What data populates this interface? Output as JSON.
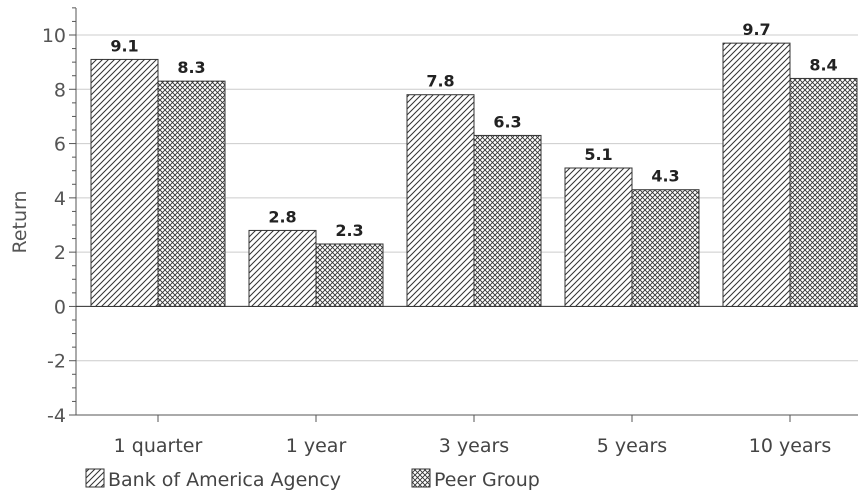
{
  "chart_data": {
    "type": "bar",
    "categories": [
      "1 quarter",
      "1 year",
      "3 years",
      "5 years",
      "10 years"
    ],
    "series": [
      {
        "name": "Bank of America Agency",
        "values": [
          9.1,
          2.8,
          7.8,
          5.1,
          9.7
        ],
        "pattern": "diagonal-hatch"
      },
      {
        "name": "Peer Group",
        "values": [
          8.3,
          2.3,
          6.3,
          4.3,
          8.4
        ],
        "pattern": "cross-hatch"
      }
    ],
    "ylabel": "Return",
    "ylim": [
      -4,
      11
    ],
    "yticks": [
      -4,
      -2,
      0,
      2,
      4,
      6,
      8,
      10
    ],
    "grid": true,
    "legend": "bottom-left",
    "colors": {
      "grid": "#cccccc",
      "axis": "#555555",
      "bar_stroke": "#333333"
    }
  }
}
